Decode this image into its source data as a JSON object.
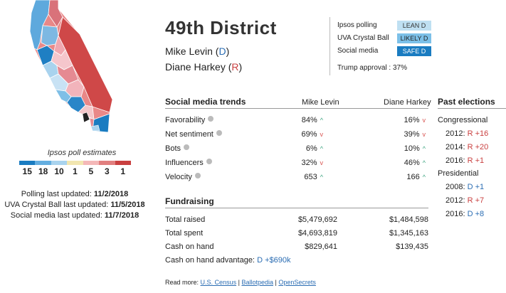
{
  "legend": {
    "title": "Ipsos poll estimates",
    "colors": [
      "#1a7cc1",
      "#64aee0",
      "#a9d3ee",
      "#f2e6b0",
      "#f4b8b8",
      "#e17f7f",
      "#c94040"
    ],
    "numbers": [
      "15",
      "18",
      "10",
      "1",
      "5",
      "3",
      "1"
    ]
  },
  "updates": {
    "polling_label": "Polling last updated:",
    "polling_date": "11/2/2018",
    "uva_label": "UVA Crystal Ball last updated:",
    "uva_date": "11/5/2018",
    "social_label": "Social media last updated:",
    "social_date": "11/7/2018"
  },
  "district": {
    "title": "49th District",
    "cand1_name": "Mike Levin",
    "cand1_party": "D",
    "cand2_name": "Diane Harkey",
    "cand2_party": "R"
  },
  "ratings": {
    "ipsos_label": "Ipsos polling",
    "ipsos_value": "LEAN D",
    "uva_label": "UVA Crystal Ball",
    "uva_value": "LIKELY D",
    "social_label": "Social media",
    "social_value": "SAFE D",
    "trump": "Trump approval : 37%"
  },
  "social": {
    "title": "Social media trends",
    "col1": "Mike Levin",
    "col2": "Diane Harkey",
    "rows": [
      {
        "label": "Favorability",
        "v1": "84%",
        "t1": "up",
        "v2": "16%",
        "t2": "down"
      },
      {
        "label": "Net sentiment",
        "v1": "69%",
        "t1": "down",
        "v2": "39%",
        "t2": "down"
      },
      {
        "label": "Bots",
        "v1": "6%",
        "t1": "up",
        "v2": "10%",
        "t2": "up"
      },
      {
        "label": "Influencers",
        "v1": "32%",
        "t1": "down",
        "v2": "46%",
        "t2": "up"
      },
      {
        "label": "Velocity",
        "v1": "653",
        "t1": "up",
        "v2": "166",
        "t2": "up"
      }
    ]
  },
  "fundraising": {
    "title": "Fundraising",
    "rows": [
      {
        "label": "Total raised",
        "v1": "$5,479,692",
        "v2": "$1,484,598"
      },
      {
        "label": "Total spent",
        "v1": "$4,693,819",
        "v2": "$1,345,163"
      },
      {
        "label": "Cash on hand",
        "v1": "$829,641",
        "v2": "$139,435"
      }
    ],
    "advantage_label": "Cash on hand advantage:",
    "advantage_value": "D +$690k"
  },
  "past": {
    "title": "Past elections",
    "congressional_label": "Congressional",
    "congressional": [
      {
        "year": "2012:",
        "result": "R +16",
        "party": "R"
      },
      {
        "year": "2014:",
        "result": "R +20",
        "party": "R"
      },
      {
        "year": "2016:",
        "result": "R +1",
        "party": "R"
      }
    ],
    "presidential_label": "Presidential",
    "presidential": [
      {
        "year": "2008:",
        "result": "D +1",
        "party": "D"
      },
      {
        "year": "2012:",
        "result": "R +7",
        "party": "R"
      },
      {
        "year": "2016:",
        "result": "D +8",
        "party": "D"
      }
    ]
  },
  "readmore": {
    "label": "Read more:",
    "link1": "U.S. Census",
    "sep1": "|",
    "link2": "Ballotpedia",
    "sep2": "|",
    "link3": "OpenSecrets"
  }
}
